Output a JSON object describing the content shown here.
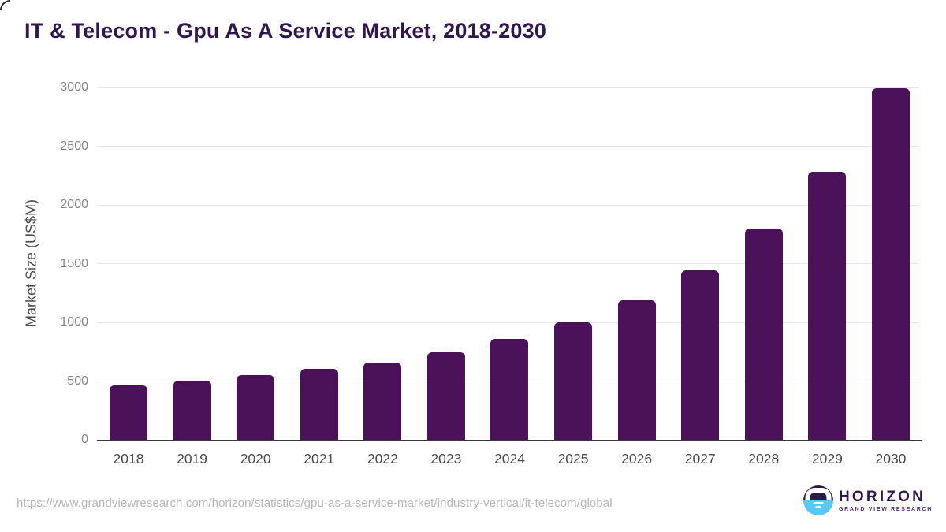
{
  "page": {
    "title": "IT & Telecom - Gpu As A Service Market, 2018-2030",
    "source_url": "https://www.grandviewresearch.com/horizon/statistics/gpu-as-a-service-market/industry-vertical/it-telecom/global"
  },
  "chart_data": {
    "type": "bar",
    "title": "IT & Telecom - Gpu As A Service Market, 2018-2030",
    "xlabel": "",
    "ylabel": "Market Size (US$M)",
    "categories": [
      "2018",
      "2019",
      "2020",
      "2021",
      "2022",
      "2023",
      "2024",
      "2025",
      "2026",
      "2027",
      "2028",
      "2029",
      "2030"
    ],
    "values": [
      466,
      502,
      549,
      601,
      656,
      748,
      858,
      1002,
      1190,
      1445,
      1796,
      2284,
      2996
    ],
    "ylim": [
      0,
      3000
    ],
    "yticks": [
      0,
      500,
      1000,
      1500,
      2000,
      2500,
      3000
    ],
    "grid": true,
    "legend": "none",
    "bar_color": "#4a1158"
  },
  "branding": {
    "logo_name": "HORIZON",
    "logo_subtext": "GRAND VIEW RESEARCH",
    "logo_navy": "#2e1a47",
    "logo_blue": "#5ac8f5"
  },
  "colors": {
    "title_text": "#31174d",
    "axis_line": "#3a3a3a",
    "gridline": "#e7e7e7",
    "tick_text": "#868686",
    "category_text": "#4a4a4a",
    "url_text": "#b7b7b7",
    "background": "#ffffff"
  }
}
